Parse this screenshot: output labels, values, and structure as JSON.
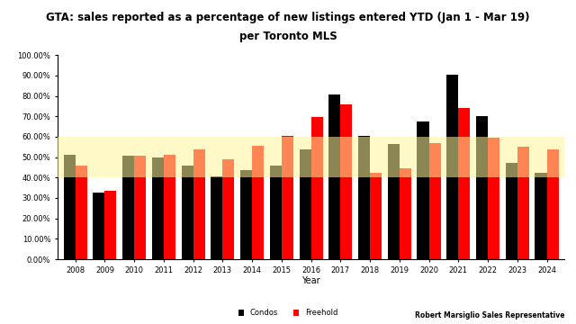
{
  "chart_data": {
    "type": "bar",
    "title": "GTA: sales reported as a percentage of new listings entered YTD (Jan 1 - Mar 19)",
    "subtitle": "per Toronto MLS",
    "x_label": "Year",
    "annotation": "Robert Marsiglio Sales Representative",
    "categories": [
      "2008",
      "2009",
      "2010",
      "2011",
      "2012",
      "2013",
      "2014",
      "2015",
      "2016",
      "2017",
      "2018",
      "2019",
      "2020",
      "2021",
      "2022",
      "2023",
      "2024"
    ],
    "series": [
      {
        "name": "Condos",
        "color": "#000000",
        "values": [
          51,
          32.5,
          50.5,
          50,
          46,
          40.5,
          43.5,
          46,
          54,
          80.5,
          60.5,
          56.5,
          67.5,
          90.5,
          70,
          47,
          42.5
        ]
      },
      {
        "name": "Freehold",
        "color": "#ff0000",
        "values": [
          46,
          33.5,
          50.5,
          51,
          54,
          49,
          55.5,
          60.5,
          69.5,
          76,
          42.5,
          44.5,
          57,
          74,
          59.5,
          55,
          54
        ]
      }
    ],
    "highlight_band": [
      40,
      60
    ],
    "highlight_color": "#fff59a",
    "ylim": [
      0,
      100
    ],
    "yticks": [
      {
        "value": 0,
        "label": "0.00%"
      },
      {
        "value": 10,
        "label": "10.00%"
      },
      {
        "value": 20,
        "label": "20.00%"
      },
      {
        "value": 30,
        "label": "30.00%"
      },
      {
        "value": 40,
        "label": "40.00%"
      },
      {
        "value": 50,
        "label": "50.00%"
      },
      {
        "value": 60,
        "label": "60.00%"
      },
      {
        "value": 70,
        "label": "70.00%"
      },
      {
        "value": 80,
        "label": "80.00%"
      },
      {
        "value": 90,
        "label": "90.00%"
      },
      {
        "value": 100,
        "label": "100.00%"
      }
    ],
    "grid": false,
    "legend": "lower center"
  }
}
